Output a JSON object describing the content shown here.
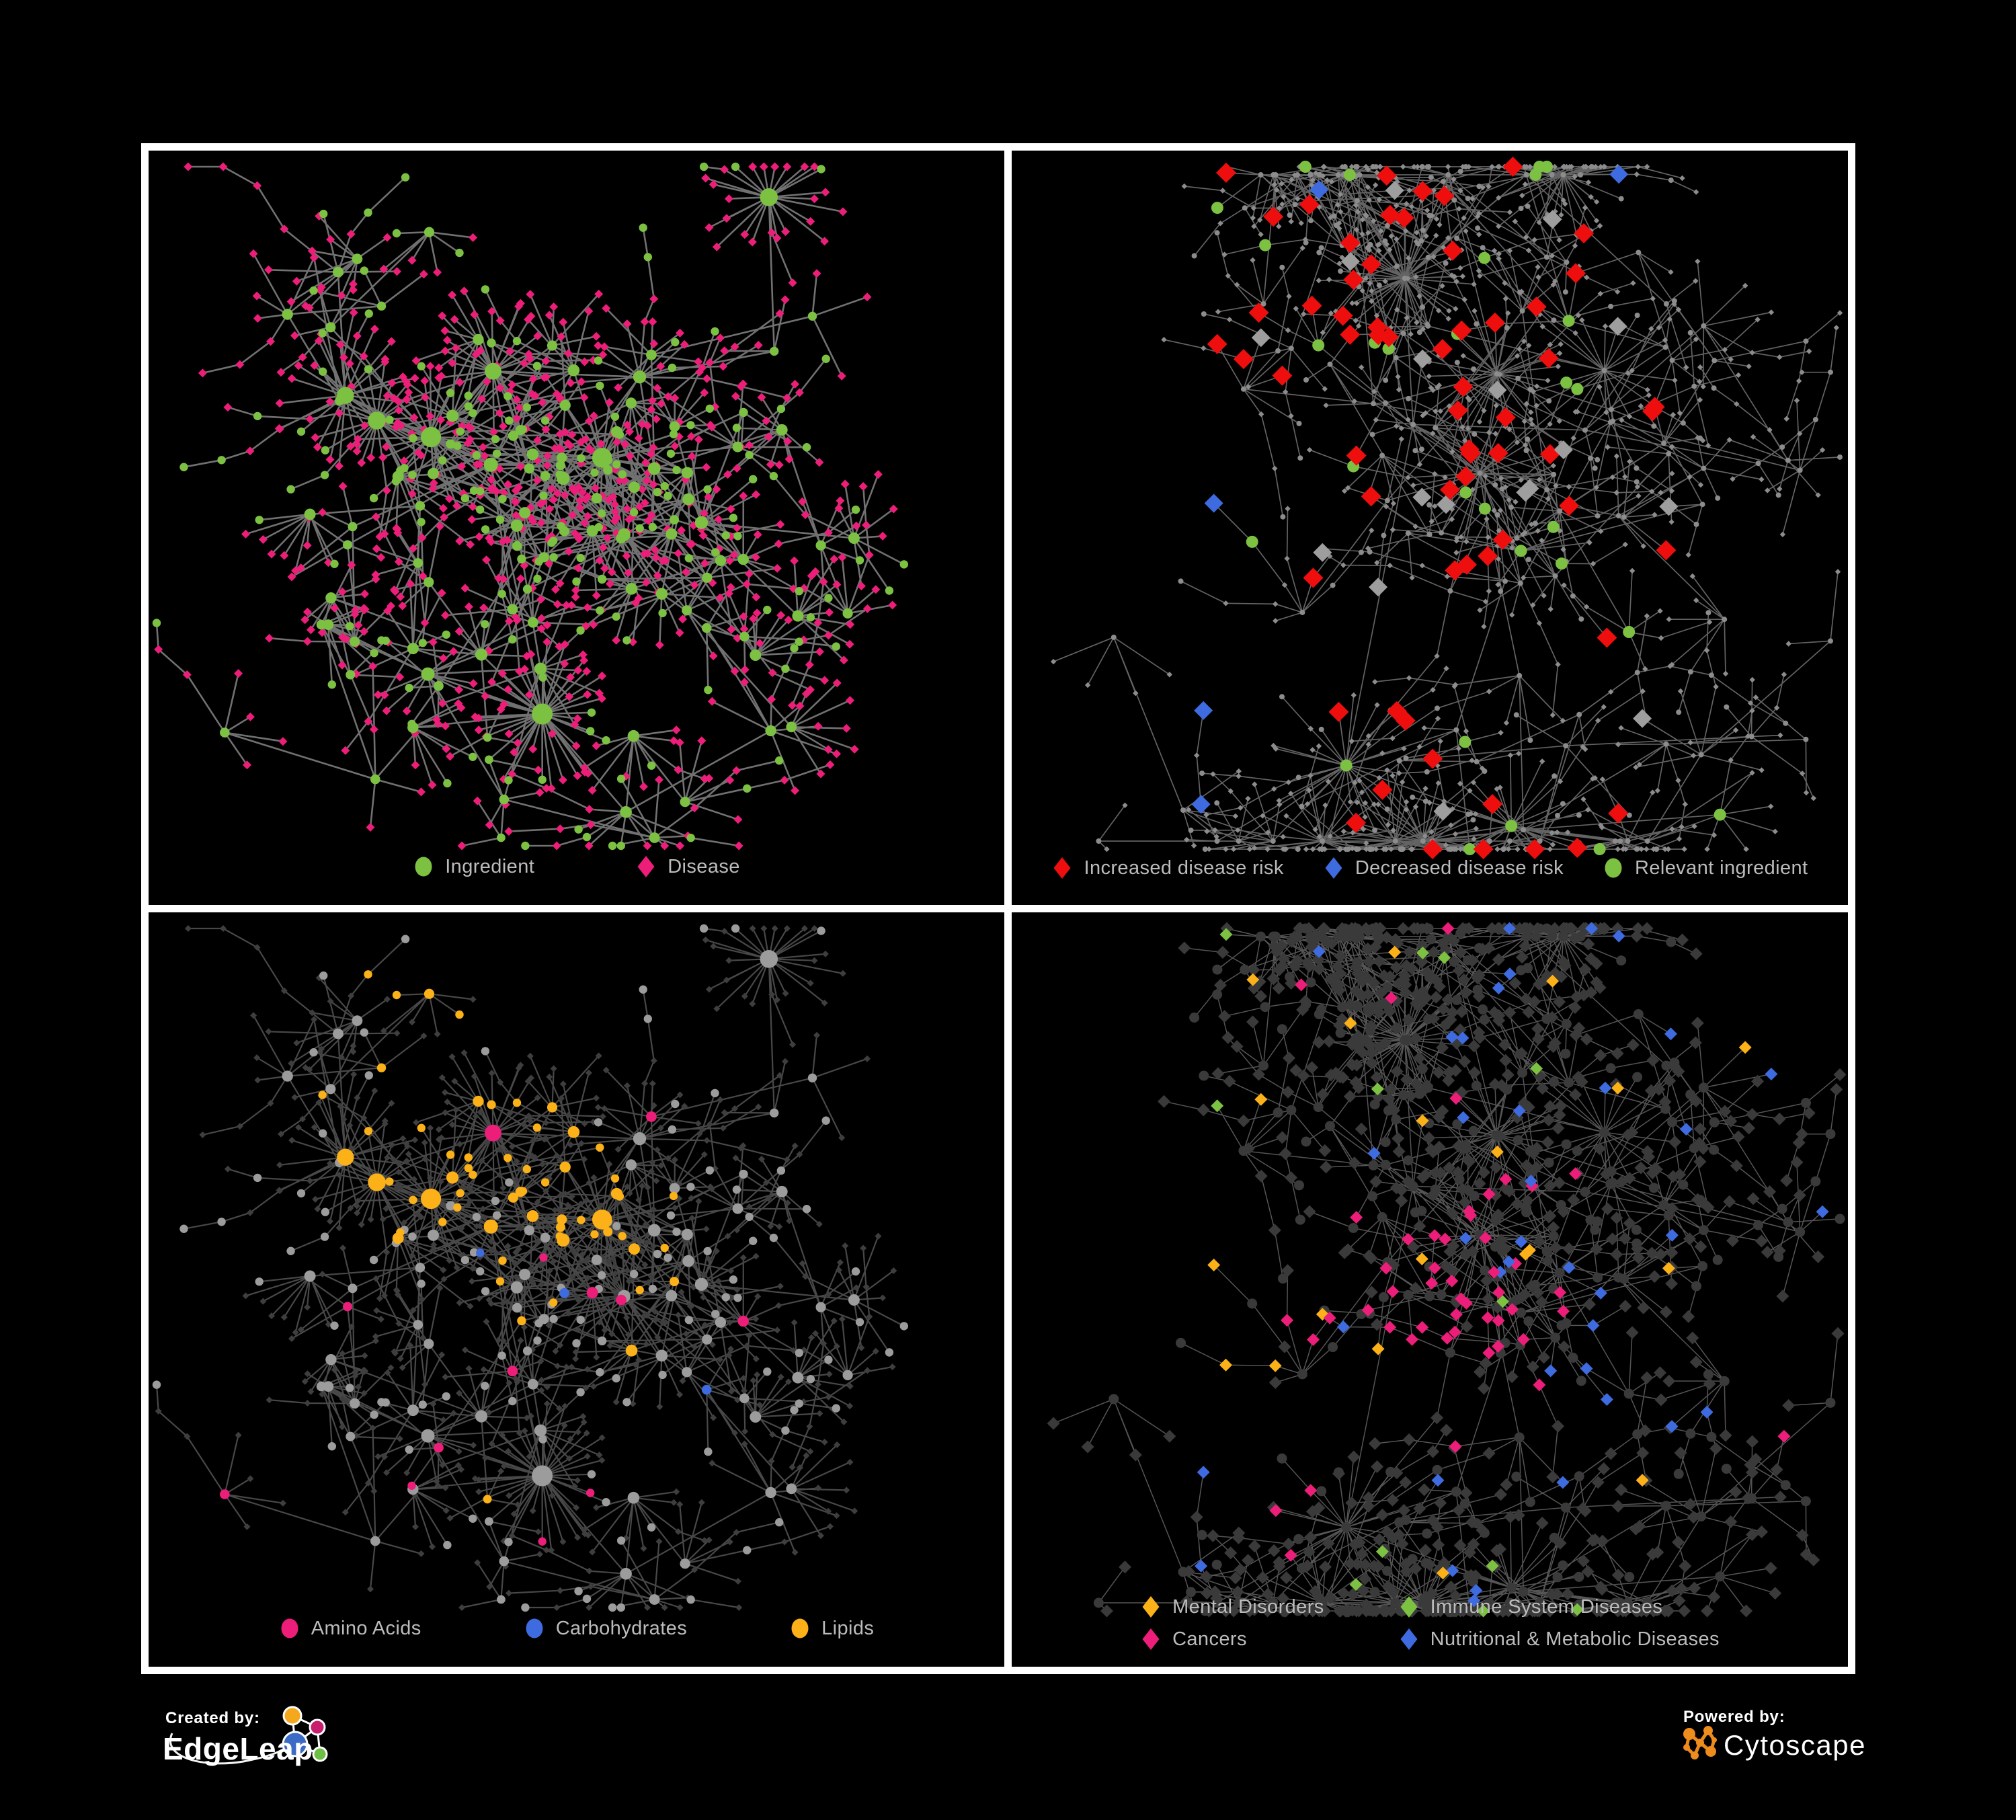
{
  "page": {
    "background": "#000000",
    "panel_border": "#ffffff",
    "legend_text_color": "#BCBCBC"
  },
  "palette": {
    "green": "#7DC142",
    "pink": "#ED1E79",
    "red": "#EE0E0E",
    "blue": "#3E6BE0",
    "orange": "#FBB117",
    "silver": "#9E9E9E",
    "gray_dot": "#8C8C8C",
    "gray_node": "#9C9C9C",
    "dark_node": "#3A3A3A"
  },
  "panels": [
    {
      "id": "ingredient-disease",
      "legend": [
        {
          "label": "Ingredient",
          "shape": "circle",
          "color": "#7DC142"
        },
        {
          "label": "Disease",
          "shape": "diamond",
          "color": "#ED1E79"
        }
      ]
    },
    {
      "id": "disease-risk",
      "legend": [
        {
          "label": "Increased disease risk",
          "shape": "diamond",
          "color": "#EE0E0E"
        },
        {
          "label": "Decreased disease risk",
          "shape": "diamond",
          "color": "#3E6BE0"
        },
        {
          "label": "Relevant ingredient",
          "shape": "circle",
          "color": "#7DC142"
        }
      ]
    },
    {
      "id": "nutrient-classes",
      "legend": [
        {
          "label": "Amino Acids",
          "shape": "circle",
          "color": "#ED1E79"
        },
        {
          "label": "Carbohydrates",
          "shape": "circle",
          "color": "#3E6BE0"
        },
        {
          "label": "Lipids",
          "shape": "circle",
          "color": "#FBB117"
        }
      ]
    },
    {
      "id": "disease-classes",
      "legend": [
        {
          "label": "Mental Disorders",
          "shape": "diamond",
          "color": "#FBB117"
        },
        {
          "label": "Immune System Diseases",
          "shape": "diamond",
          "color": "#7DC142"
        },
        {
          "label": "Cancers",
          "shape": "diamond",
          "color": "#ED1E79"
        },
        {
          "label": "Nutritional & Metabolic Diseases",
          "shape": "diamond",
          "color": "#3E6BE0"
        }
      ]
    }
  ],
  "footer": {
    "created_by_label": "Created by:",
    "created_by_brand": "EdgeLeap",
    "powered_by_label": "Powered by:",
    "powered_by_brand": "Cytoscape"
  }
}
